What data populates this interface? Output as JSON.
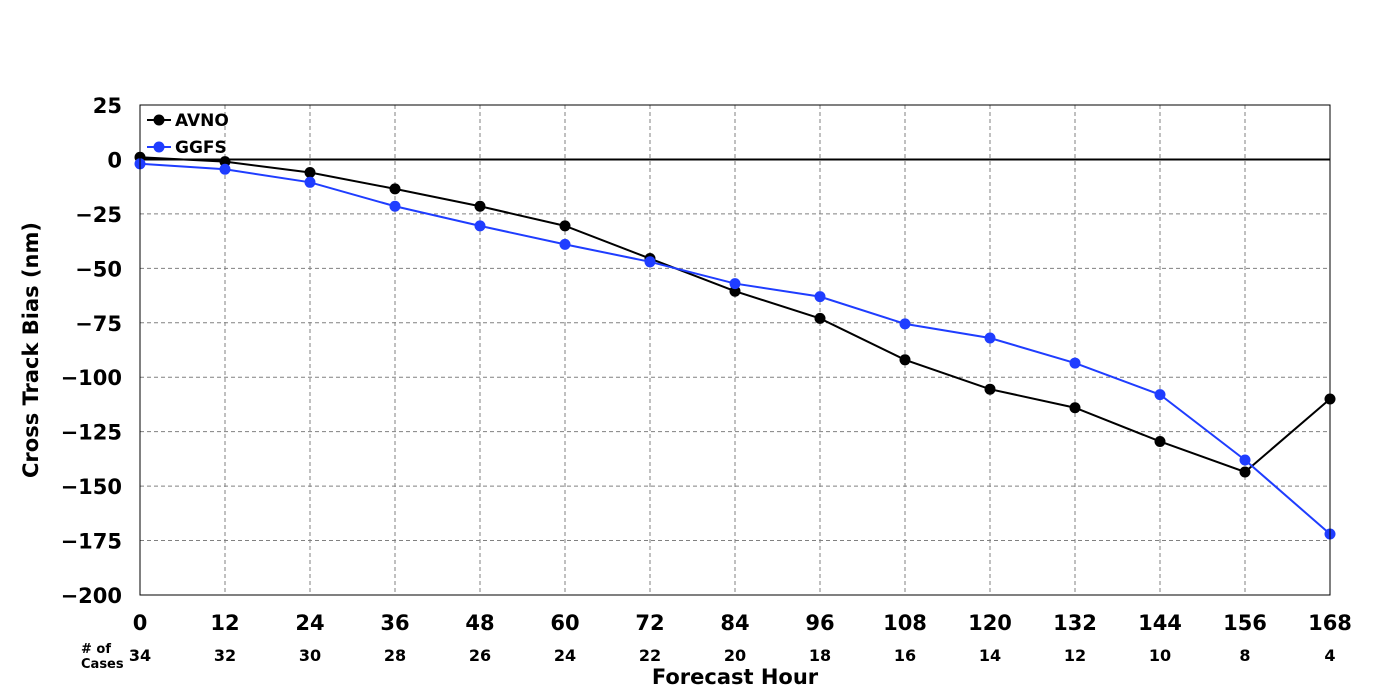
{
  "chart_data": {
    "type": "line",
    "title": "",
    "xlabel": "Forecast Hour",
    "ylabel": "Cross Track Bias (nm)",
    "x": [
      0,
      12,
      24,
      36,
      48,
      60,
      72,
      84,
      96,
      108,
      120,
      132,
      144,
      156,
      168
    ],
    "xlim": [
      0,
      168
    ],
    "ylim": [
      -200,
      25
    ],
    "yticks": [
      25,
      0,
      -25,
      -50,
      -75,
      -100,
      -125,
      -150,
      -175,
      -200
    ],
    "grid": true,
    "legend_position": "top-left",
    "reference_line": 0,
    "cases_label": "# of\nCases",
    "cases": [
      34,
      32,
      30,
      28,
      26,
      24,
      22,
      20,
      18,
      16,
      14,
      12,
      10,
      8,
      4
    ],
    "series": [
      {
        "name": "AVNO",
        "color": "#000000",
        "values": [
          1,
          -1,
          -6,
          -13.5,
          -21.5,
          -30.5,
          -45.5,
          -60.5,
          -73,
          -92,
          -105.5,
          -114,
          -129.5,
          -143.5,
          -110
        ]
      },
      {
        "name": "GGFS",
        "color": "#1f3dff",
        "values": [
          -2,
          -4.5,
          -10.5,
          -21.5,
          -30.5,
          -39,
          -47,
          -57,
          -63,
          -75.5,
          -82,
          -93.5,
          -108,
          -138,
          -172
        ]
      }
    ]
  }
}
